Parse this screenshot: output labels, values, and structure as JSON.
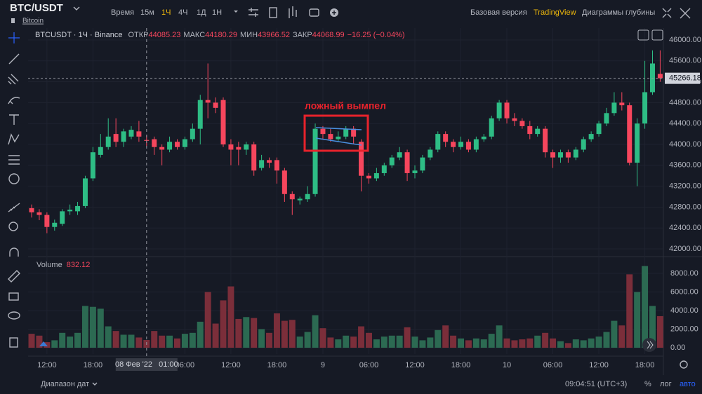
{
  "header": {
    "symbol": "BTC/USDT",
    "name": "Bitcoin",
    "intervals_label": "Время",
    "intervals": [
      "15м",
      "1Ч",
      "4Ч",
      "1Д",
      "1Н"
    ],
    "active_interval": 1,
    "views": [
      "Базовая версия",
      "TradingView",
      "Диаграммы глубины"
    ],
    "active_view": 1
  },
  "chart_data": {
    "type": "candlestick",
    "symbol_label": "BTCUSDT · 1Ч · Binance",
    "legend_labels": {
      "open": "ОТКР",
      "high": "МАКС",
      "low": "МИН",
      "close": "ЗАКР"
    },
    "change": "−16.25 (−0.04%)",
    "annotation": "ложный вымпел",
    "crosshair_index": 15,
    "crosshair_label": "08 Фев '22   01:00",
    "up_color": "#2ebd85",
    "down_color": "#f6465d",
    "volume_up_color": "#2c6a52",
    "volume_down_color": "#7b2e3a",
    "grid": true,
    "open": [
      42780,
      42700,
      42650,
      42420,
      42480,
      42720,
      42720,
      42820,
      43350,
      43800,
      43950,
      44200,
      44050,
      44150,
      44250,
      44085.23,
      44100,
      43950,
      43900,
      44050,
      43950,
      44100,
      44300,
      44850,
      44800,
      44850,
      44000,
      43950,
      43900,
      44000,
      43550,
      43700,
      43700,
      43500,
      43050,
      42930,
      42950,
      43050,
      44300,
      44200,
      44100,
      44150,
      44300,
      44050,
      43400,
      43350,
      43450,
      43600,
      43750,
      43850,
      43450,
      43500,
      43750,
      43900,
      44200,
      44050,
      43950,
      44050,
      43900,
      44100,
      44150,
      44500,
      44800,
      44500,
      44450,
      44350,
      44200,
      44300,
      43850,
      43750,
      43850,
      43750,
      43900,
      44100,
      44200,
      44400,
      44600,
      44800,
      44750,
      43650,
      44400,
      45000,
      45350
    ],
    "high": [
      42850,
      42760,
      42700,
      42560,
      42760,
      42850,
      42900,
      43400,
      43950,
      44200,
      44500,
      44500,
      44300,
      44350,
      44450,
      44180.29,
      44150,
      44000,
      44150,
      44100,
      44150,
      44400,
      44950,
      45550,
      44900,
      44900,
      44100,
      44050,
      44050,
      44050,
      43800,
      43750,
      43750,
      43550,
      43100,
      43000,
      43200,
      44400,
      44350,
      44300,
      44250,
      44350,
      44350,
      44100,
      43450,
      43550,
      43650,
      43800,
      43950,
      43900,
      43600,
      43800,
      43950,
      44250,
      44250,
      44100,
      44150,
      44100,
      44150,
      44200,
      44550,
      44850,
      44850,
      44600,
      44500,
      44450,
      44350,
      44350,
      43900,
      43900,
      43900,
      43950,
      44150,
      44250,
      44450,
      44700,
      45000,
      45000,
      44800,
      44500,
      45600,
      45800,
      45800
    ],
    "low": [
      42600,
      42550,
      42300,
      42350,
      42440,
      42650,
      42650,
      42780,
      43300,
      43750,
      43900,
      43950,
      43950,
      44100,
      44050,
      43966.52,
      43800,
      43600,
      43850,
      43900,
      43900,
      44050,
      44000,
      44500,
      44600,
      43950,
      43600,
      43600,
      43800,
      43400,
      43500,
      43550,
      43250,
      42900,
      42650,
      42850,
      42900,
      43000,
      44100,
      44050,
      44050,
      44100,
      44000,
      43100,
      43250,
      43300,
      43400,
      43550,
      43700,
      43300,
      43350,
      43450,
      43700,
      43850,
      43950,
      43850,
      43900,
      43850,
      43850,
      44050,
      44100,
      44450,
      44400,
      44350,
      44300,
      44100,
      44150,
      43750,
      43550,
      43650,
      43650,
      43700,
      43850,
      44050,
      44150,
      44350,
      44550,
      44650,
      43600,
      43200,
      44300,
      44950,
      45200
    ],
    "close": [
      42700,
      42650,
      42420,
      42500,
      42720,
      42750,
      42820,
      43350,
      43850,
      43950,
      44150,
      44050,
      44250,
      44280,
      44150,
      44068.99,
      43950,
      43900,
      44050,
      43950,
      44100,
      44300,
      44850,
      44800,
      44700,
      44000,
      43900,
      43900,
      44000,
      43500,
      43700,
      43650,
      43500,
      43050,
      42950,
      42960,
      43050,
      44300,
      44200,
      44100,
      44150,
      44300,
      44150,
      43400,
      43350,
      43450,
      43600,
      43750,
      43850,
      43450,
      43500,
      43750,
      43900,
      44200,
      44050,
      43950,
      44050,
      43900,
      44100,
      44150,
      44500,
      44800,
      44500,
      44450,
      44350,
      44200,
      44300,
      43850,
      43750,
      43850,
      43750,
      43900,
      44100,
      44200,
      44400,
      44600,
      44800,
      44750,
      43650,
      44400,
      45000,
      45550,
      45266.18
    ],
    "ylim": [
      41866,
      46228
    ],
    "yticks": [
      {
        "value": 42000,
        "label": "42000.00"
      },
      {
        "value": 42400,
        "label": "42400.00"
      },
      {
        "value": 42800,
        "label": "42800.00"
      },
      {
        "value": 43200,
        "label": "43200.00"
      },
      {
        "value": 43600,
        "label": "43600.00"
      },
      {
        "value": 44000,
        "label": "44000.00"
      },
      {
        "value": 44400,
        "label": "44400.00"
      },
      {
        "value": 44800,
        "label": "44800.00"
      },
      {
        "value": 45200,
        "label": "45200.00"
      },
      {
        "value": 45600,
        "label": "45600.00"
      },
      {
        "value": 46000,
        "label": "46000.00"
      }
    ],
    "xlim": [
      -0.46,
      82.42
    ],
    "xticks": [
      {
        "value": 2,
        "label": "12:00"
      },
      {
        "value": 8,
        "label": "18:00"
      },
      {
        "value": 20,
        "label": "06:00"
      },
      {
        "value": 26,
        "label": "12:00"
      },
      {
        "value": 32,
        "label": "18:00"
      },
      {
        "value": 38,
        "label": "9"
      },
      {
        "value": 44,
        "label": "06:00"
      },
      {
        "value": 50,
        "label": "12:00"
      },
      {
        "value": 56,
        "label": "18:00"
      },
      {
        "value": 62,
        "label": "10"
      },
      {
        "value": 68,
        "label": "06:00"
      },
      {
        "value": 74,
        "label": "12:00"
      },
      {
        "value": 80,
        "label": "18:00"
      }
    ],
    "volume": {
      "name": "Volume",
      "values": [
        1500,
        1300,
        600,
        800,
        1600,
        1200,
        1600,
        4500,
        4400,
        4200,
        2300,
        1800,
        1400,
        1400,
        1100,
        832.12,
        1800,
        1300,
        1300,
        1000,
        1500,
        1600,
        2800,
        6000,
        2600,
        5100,
        6600,
        3100,
        3300,
        3200,
        2000,
        1600,
        3700,
        2900,
        3000,
        1200,
        1700,
        3500,
        2100,
        1100,
        900,
        1300,
        1200,
        2300,
        1600,
        900,
        1200,
        1300,
        1300,
        2200,
        1200,
        800,
        1100,
        1900,
        2400,
        1300,
        1000,
        800,
        1000,
        900,
        1500,
        2400,
        1000,
        800,
        900,
        1000,
        1300,
        1600,
        1000,
        700,
        500,
        900,
        800,
        1000,
        1200,
        1700,
        2900,
        2400,
        7900,
        6000,
        8800,
        4500,
        3400
      ],
      "ylim": [
        -302,
        9509
      ],
      "yticks": [
        {
          "value": 0,
          "label": "0.00"
        },
        {
          "value": 2000,
          "label": "2000.00"
        },
        {
          "value": 4000,
          "label": "4000.00"
        },
        {
          "value": 6000,
          "label": "6000.00"
        },
        {
          "value": 8000,
          "label": "8000.00"
        }
      ]
    }
  },
  "footer": {
    "range": "Диапазон дат",
    "clock": "09:04:51 (UTC+3)",
    "buttons": [
      "%",
      "лог",
      "авто"
    ],
    "active_button": 2
  }
}
